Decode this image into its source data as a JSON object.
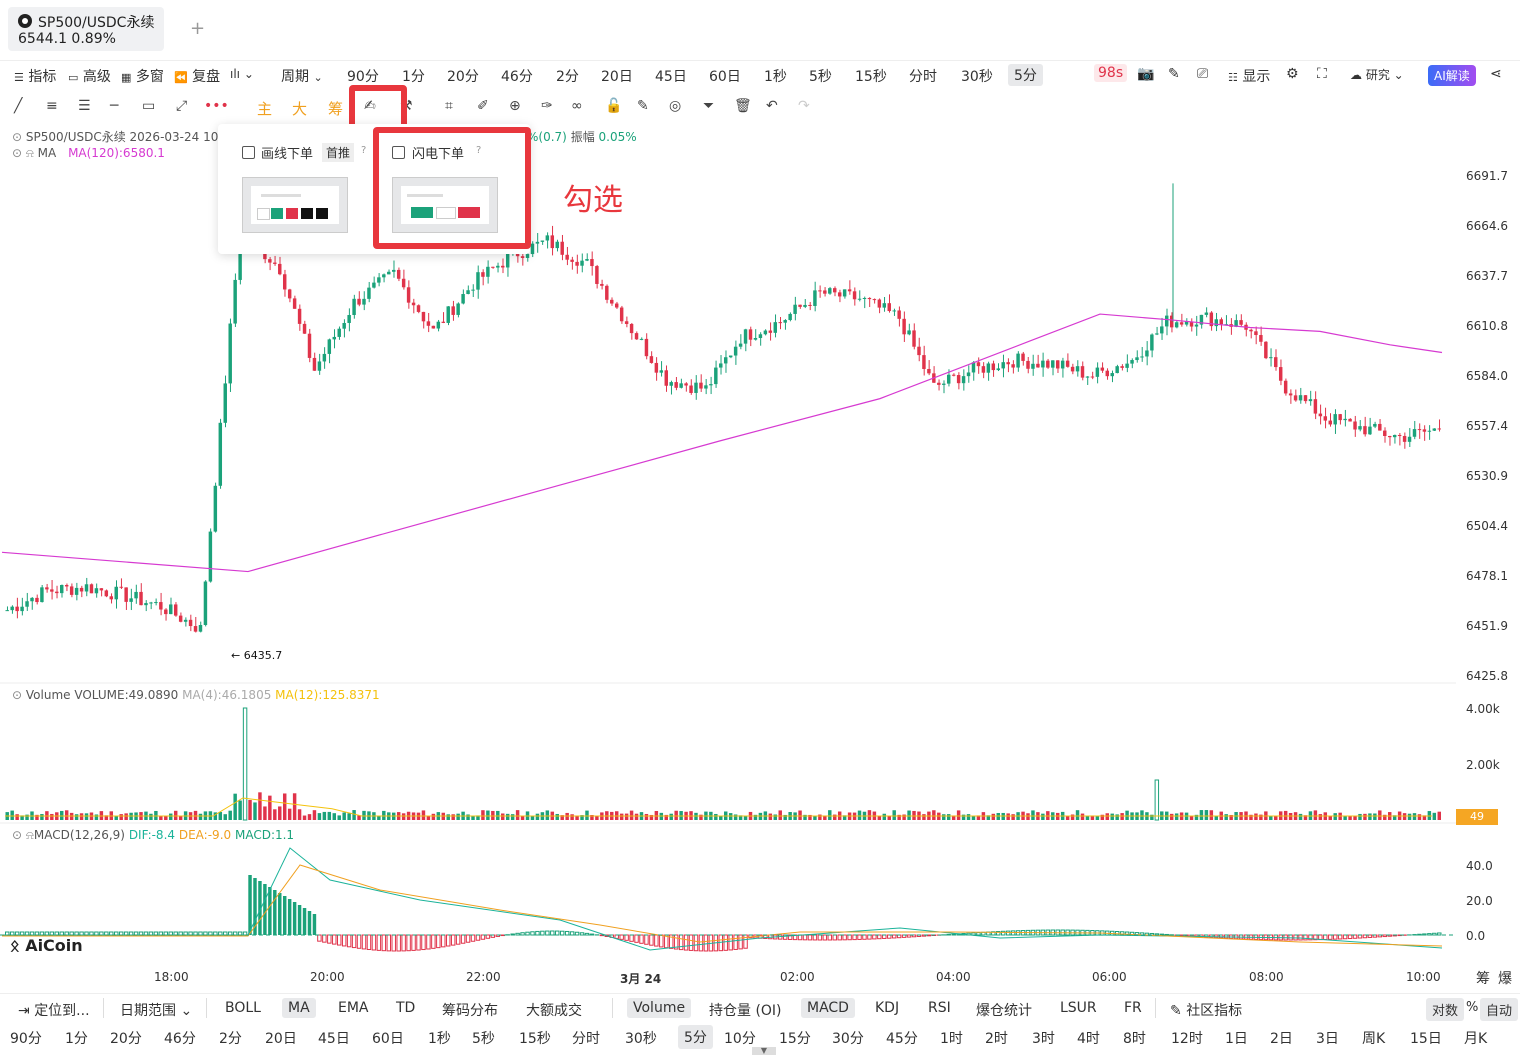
{
  "tab": {
    "symbol": "SP500/USDC永续",
    "price_change": "6544.1  0.89%",
    "add": "+"
  },
  "toolbar": {
    "items": [
      "指标",
      "高级",
      "多窗",
      "复盘",
      "周期",
      "90分",
      "1分",
      "20分",
      "46分",
      "2分",
      "20日",
      "45日",
      "60日",
      "1秒",
      "5秒",
      "15秒",
      "分时",
      "30秒",
      "5分"
    ],
    "countdown": "98s",
    "display": "显示",
    "research": "研究",
    "ai": "AI解读"
  },
  "drawrow": {
    "labels": [
      "主",
      "大",
      "筹"
    ]
  },
  "popup": {
    "opt1": "画线下单",
    "opt1_badge": "首推",
    "opt2": "闪电下单"
  },
  "annotation": "勾选",
  "info": {
    "symbol_line": "SP500/USDC永续  2026-03-24 10",
    "change_tail": "%(0.7)",
    "amp_label": "振幅",
    "amp_value": "0.05%",
    "ma_label": "MA",
    "ma_value": "MA(120):6580.1",
    "vol_label": "Volume",
    "vol_value": "VOLUME:49.0890",
    "vol_ma4": "MA(4):46.1805",
    "vol_ma12": "MA(12):125.8371",
    "macd_label": "MACD(12,26,9)",
    "dif": "DIF:-8.4",
    "dea": "DEA:-9.0",
    "macd": "MACD:1.1",
    "low_marker": "← 6435.7",
    "vol_current": "49"
  },
  "price_axis": [
    "6691.7",
    "6664.6",
    "6637.7",
    "6610.8",
    "6584.0",
    "6557.4",
    "6530.9",
    "6504.4",
    "6478.1",
    "6451.9",
    "6425.8"
  ],
  "vol_axis": [
    "4.00k",
    "2.00k"
  ],
  "macd_axis": [
    "40.0",
    "20.0",
    "0.0"
  ],
  "time_axis": [
    "18:00",
    "20:00",
    "22:00",
    "3月 24",
    "02:00",
    "04:00",
    "06:00",
    "08:00",
    "10:00"
  ],
  "corner_labels": [
    "筹",
    "爆"
  ],
  "logo": "AiCoin",
  "bottom_indicators": [
    "定位到...",
    "日期范围",
    "BOLL",
    "MA",
    "EMA",
    "TD",
    "筹码分布",
    "大额成交",
    "Volume",
    "持仓量 (OI)",
    "MACD",
    "KDJ",
    "RSI",
    "爆仓统计",
    "LSUR",
    "FR",
    "社区指标",
    "对数",
    "%",
    "自动"
  ],
  "bottom_periods": [
    "90分",
    "1分",
    "20分",
    "46分",
    "2分",
    "20日",
    "45日",
    "60日",
    "1秒",
    "5秒",
    "15秒",
    "分时",
    "30秒",
    "5分",
    "10分",
    "15分",
    "30分",
    "45分",
    "1时",
    "2时",
    "3时",
    "4时",
    "8时",
    "12时",
    "1日",
    "2日",
    "3日",
    "周K",
    "15日",
    "月K"
  ],
  "colors": {
    "up": "#1ba27a",
    "down": "#e0334a",
    "ma": "#d63ad1",
    "annot": "#e8373d"
  },
  "chart_data": {
    "type": "candlestick",
    "series": [
      {
        "name": "MA(120)",
        "x": [
          "16:30",
          "19:05",
          "21:00",
          "23:00",
          "01:00",
          "03:00",
          "04:00",
          "05:00",
          "06:00",
          "07:00",
          "08:00",
          "09:00",
          "10:10"
        ],
        "values": [
          6480,
          6470,
          6492,
          6515,
          6538,
          6560,
          6590,
          6604,
          6601,
          6597,
          6595,
          6588,
          6584
        ]
      },
      {
        "name": "Close",
        "x": [
          "16:30",
          "17:00",
          "17:30",
          "18:00",
          "18:30",
          "19:00",
          "19:10",
          "19:30",
          "20:00",
          "20:30",
          "21:00",
          "21:30",
          "22:00",
          "22:30",
          "23:00",
          "23:30",
          "00:00",
          "00:30",
          "01:00",
          "01:30",
          "02:00",
          "02:30",
          "03:00",
          "03:30",
          "04:00",
          "04:30",
          "05:00",
          "05:30",
          "06:00",
          "06:30",
          "07:00",
          "07:30",
          "08:00",
          "08:30",
          "09:00",
          "09:30",
          "10:00",
          "10:10"
        ],
        "values": [
          6450,
          6460,
          6462,
          6458,
          6452,
          6440,
          6648,
          6628,
          6575,
          6610,
          6625,
          6595,
          6620,
          6635,
          6642,
          6630,
          6600,
          6570,
          6565,
          6592,
          6600,
          6615,
          6612,
          6602,
          6566,
          6575,
          6580,
          6578,
          6572,
          6580,
          6600,
          6602,
          6598,
          6566,
          6550,
          6545,
          6540,
          6544.1
        ]
      }
    ],
    "low_label": 6435.7
  }
}
